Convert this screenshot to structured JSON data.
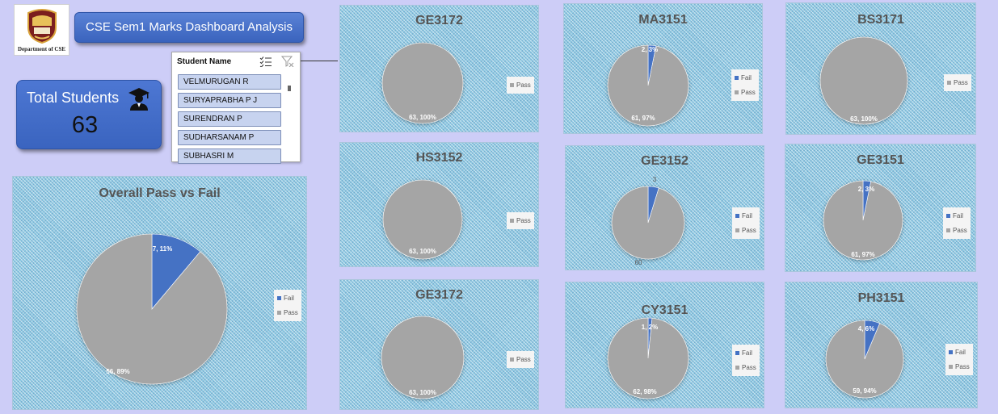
{
  "header": {
    "logo_caption": "Department of CSE",
    "title": "CSE Sem1 Marks Dashboard Analysis"
  },
  "total_students": {
    "label": "Total Students",
    "value": "63"
  },
  "slicer": {
    "title": "Student Name",
    "items": [
      "VELMURUGAN R",
      "SURYAPRABHA P J",
      "SURENDRAN P",
      "SUDHARSANAM P",
      "SUBHASRI M"
    ]
  },
  "colors": {
    "fail": "#4472c4",
    "pass": "#a5a5a5",
    "background": "#cdcdf7",
    "card": "#4472c4"
  },
  "chart_data": [
    {
      "id": "overall",
      "type": "pie",
      "title": "Overall Pass vs Fail",
      "categories": [
        "Fail",
        "Pass"
      ],
      "values": [
        7,
        56
      ],
      "labels": [
        "7, 11%",
        "56, 89%"
      ],
      "legend": [
        "Fail",
        "Pass"
      ],
      "legend_position": "right"
    },
    {
      "id": "ge3172-a",
      "type": "pie",
      "title": "GE3172",
      "categories": [
        "Pass"
      ],
      "values": [
        63
      ],
      "labels": [
        "63, 100%"
      ],
      "legend": [
        "Pass"
      ],
      "legend_position": "right"
    },
    {
      "id": "hs3152",
      "type": "pie",
      "title": "HS3152",
      "categories": [
        "Pass"
      ],
      "values": [
        63
      ],
      "labels": [
        "63, 100%"
      ],
      "legend": [
        "Pass"
      ],
      "legend_position": "right"
    },
    {
      "id": "ge3172-b",
      "type": "pie",
      "title": "GE3172",
      "categories": [
        "Pass"
      ],
      "values": [
        63
      ],
      "labels": [
        "63, 100%"
      ],
      "legend": [
        "Pass"
      ],
      "legend_position": "right"
    },
    {
      "id": "ma3151",
      "type": "pie",
      "title": "MA3151",
      "categories": [
        "Fail",
        "Pass"
      ],
      "values": [
        2,
        61
      ],
      "labels": [
        "2, 3%",
        "61, 97%"
      ],
      "legend": [
        "Fail",
        "Pass"
      ],
      "legend_position": "right"
    },
    {
      "id": "ge3152",
      "type": "pie",
      "title": "GE3152",
      "categories": [
        "Fail",
        "Pass"
      ],
      "values": [
        3,
        60
      ],
      "labels": [
        "3",
        "60"
      ],
      "legend": [
        "Fail",
        "Pass"
      ],
      "legend_position": "right"
    },
    {
      "id": "cy3151",
      "type": "pie",
      "title": "CY3151",
      "categories": [
        "Fail",
        "Pass"
      ],
      "values": [
        1,
        62
      ],
      "labels": [
        "1, 2%",
        "62, 98%"
      ],
      "legend": [
        "Fail",
        "Pass"
      ],
      "legend_position": "right"
    },
    {
      "id": "bs3171",
      "type": "pie",
      "title": "BS3171",
      "categories": [
        "Pass"
      ],
      "values": [
        63
      ],
      "labels": [
        "63, 100%"
      ],
      "legend": [
        "Pass"
      ],
      "legend_position": "right"
    },
    {
      "id": "ge3151",
      "type": "pie",
      "title": "GE3151",
      "categories": [
        "Fail",
        "Pass"
      ],
      "values": [
        2,
        61
      ],
      "labels": [
        "2, 3%",
        "61, 97%"
      ],
      "legend": [
        "Fail",
        "Pass"
      ],
      "legend_position": "right"
    },
    {
      "id": "ph3151",
      "type": "pie",
      "title": "PH3151",
      "categories": [
        "Fail",
        "Pass"
      ],
      "values": [
        4,
        59
      ],
      "labels": [
        "4, 6%",
        "59, 94%"
      ],
      "legend": [
        "Fail",
        "Pass"
      ],
      "legend_position": "right"
    }
  ]
}
